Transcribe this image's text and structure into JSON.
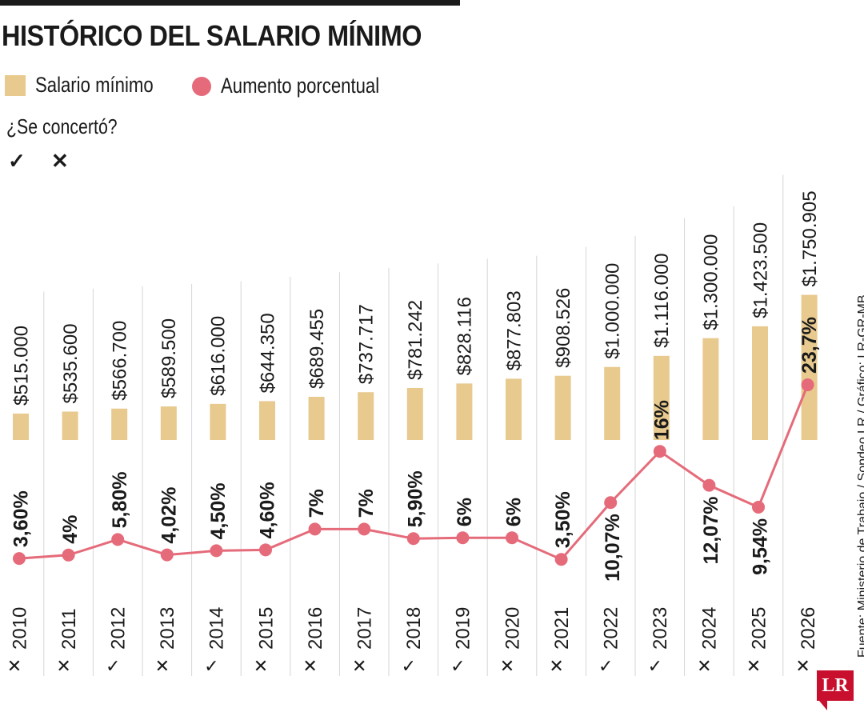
{
  "title": "HISTÓRICO DEL SALARIO MÍNIMO",
  "legend": {
    "salary_label": "Salario mínimo",
    "increase_label": "Aumento porcentual"
  },
  "agreement": {
    "question": "¿Se concertó?",
    "yes_symbol": "✓",
    "no_symbol": "✕"
  },
  "source": "Fuente: Ministerio de Trabajo / Sondeo LR / Gráfico: LR-GR-MB",
  "logo": "LR",
  "colors": {
    "bar": "#e8c98e",
    "line": "#e56b7a",
    "text": "#1a1a1a",
    "grid": "#d6d6d6",
    "logo": "#c8102e"
  },
  "chart_data": {
    "type": "bar",
    "categories": [
      "2010",
      "2011",
      "2012",
      "2013",
      "2014",
      "2015",
      "2016",
      "2017",
      "2018",
      "2019",
      "2020",
      "2021",
      "2022",
      "2023",
      "2024",
      "2025",
      "2026"
    ],
    "series": [
      {
        "name": "Salario mínimo",
        "type": "bar",
        "values": [
          515000,
          535600,
          566700,
          589500,
          616000,
          644350,
          689455,
          737717,
          781242,
          828116,
          877803,
          908526,
          1000000,
          1116000,
          1300000,
          1423500,
          1750905
        ],
        "labels": [
          "$515.000",
          "$535.600",
          "$566.700",
          "$589.500",
          "$616.000",
          "$644.350",
          "$689.455",
          "$737.717",
          "$781.242",
          "$828.116",
          "$877.803",
          "$908.526",
          "$1.000.000",
          "$1.116.000",
          "$1.300.000",
          "$1.423.500",
          "$1.750.905"
        ]
      },
      {
        "name": "Aumento porcentual",
        "type": "line",
        "values": [
          3.6,
          4,
          5.8,
          4.02,
          4.5,
          4.6,
          7,
          7,
          5.9,
          6,
          6,
          3.5,
          10.07,
          16,
          12.07,
          9.54,
          23.7
        ],
        "labels": [
          "3,60%",
          "4%",
          "5,80%",
          "4,02%",
          "4,50%",
          "4,60%",
          "7%",
          "7%",
          "5,90%",
          "6%",
          "6%",
          "3,50%",
          "10,07%",
          "16%",
          "12,07%",
          "9,54%",
          "23,7%"
        ]
      }
    ],
    "concertado": [
      false,
      false,
      true,
      false,
      true,
      false,
      false,
      false,
      true,
      true,
      false,
      false,
      true,
      true,
      false,
      false,
      false
    ],
    "bar_ylim": [
      0,
      1750905
    ],
    "grid": "vertical"
  }
}
